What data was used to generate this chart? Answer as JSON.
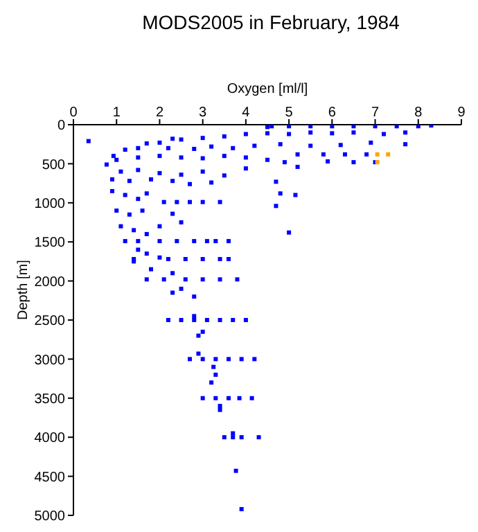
{
  "chart_data": {
    "type": "scatter",
    "title": "MODS2005 in February, 1984",
    "xlabel": "Oxygen [ml/l]",
    "ylabel": "Depth [m]",
    "xlim": [
      0,
      9
    ],
    "xticks": [
      0,
      1,
      2,
      3,
      4,
      5,
      6,
      7,
      8,
      9
    ],
    "ylim": [
      5000,
      0
    ],
    "yticks": [
      0,
      500,
      1000,
      1500,
      2000,
      2500,
      3000,
      3500,
      4000,
      4500,
      5000
    ],
    "marker": "square",
    "grid": false,
    "legend": false,
    "series": [
      {
        "color": "#0000ff",
        "x": [
          8.3,
          8.0,
          7.5,
          7.0,
          6.5,
          6.0,
          5.5,
          5.0,
          4.6,
          4.5,
          7.7,
          7.2,
          6.5,
          6.0,
          5.5,
          5.0,
          4.5,
          4.0,
          3.5,
          3.0,
          2.5,
          2.3,
          2.0,
          1.7,
          0.35,
          7.7,
          6.9,
          6.2,
          5.5,
          4.8,
          4.2,
          3.7,
          3.2,
          2.8,
          2.2,
          1.5,
          1.2,
          0.93,
          5.2,
          5.8,
          6.3,
          6.8,
          5.9,
          6.5,
          7.0,
          0.77,
          1.0,
          1.5,
          2.0,
          2.5,
          3.0,
          3.5,
          4.0,
          4.5,
          4.9,
          5.2,
          1.1,
          1.5,
          2.0,
          2.5,
          3.0,
          3.5,
          4.0,
          0.9,
          1.3,
          1.8,
          2.3,
          2.7,
          3.2,
          4.7,
          4.8,
          5.15,
          2.1,
          2.4,
          2.7,
          3.0,
          3.4,
          4.7,
          0.9,
          1.2,
          1.5,
          1.7,
          1.0,
          1.3,
          1.6,
          1.1,
          1.4,
          1.7,
          2.0,
          2.3,
          2.5,
          5.0,
          1.2,
          1.5,
          2.0,
          2.4,
          2.8,
          3.1,
          3.3,
          3.6,
          1.5,
          1.7,
          2.0,
          1.4,
          1.4,
          2.2,
          2.6,
          3.0,
          3.4,
          3.6,
          1.8,
          2.3,
          1.7,
          2.1,
          2.6,
          3.0,
          3.4,
          3.8,
          2.3,
          2.5,
          2.8,
          2.2,
          2.5,
          2.8,
          3.1,
          3.4,
          3.7,
          4.0,
          2.8,
          3.0,
          2.9,
          2.7,
          3.0,
          3.3,
          3.6,
          3.9,
          4.2,
          2.9,
          3.25,
          3.3,
          3.2,
          3.0,
          3.3,
          3.6,
          3.85,
          4.14,
          3.4,
          3.4,
          3.5,
          3.7,
          3.9,
          4.3,
          3.7,
          3.77,
          3.9
        ],
        "values": [
          10,
          20,
          20,
          20,
          20,
          20,
          20,
          20,
          20,
          30,
          100,
          120,
          100,
          110,
          100,
          120,
          110,
          120,
          150,
          170,
          190,
          180,
          230,
          240,
          210,
          250,
          230,
          260,
          270,
          250,
          270,
          300,
          280,
          310,
          300,
          300,
          320,
          400,
          380,
          380,
          380,
          380,
          470,
          480,
          480,
          510,
          450,
          420,
          400,
          420,
          430,
          400,
          420,
          450,
          480,
          540,
          600,
          580,
          620,
          640,
          600,
          650,
          560,
          700,
          720,
          700,
          720,
          760,
          740,
          730,
          880,
          900,
          990,
          990,
          990,
          990,
          990,
          1040,
          850,
          900,
          950,
          880,
          1100,
          1150,
          1100,
          1300,
          1350,
          1400,
          1300,
          1140,
          1250,
          1380,
          1490,
          1490,
          1490,
          1490,
          1490,
          1490,
          1490,
          1490,
          1600,
          1650,
          1700,
          1750,
          1720,
          1720,
          1720,
          1720,
          1720,
          1720,
          1850,
          1900,
          1980,
          1980,
          1980,
          1980,
          1980,
          1980,
          2150,
          2100,
          2200,
          2500,
          2500,
          2500,
          2500,
          2500,
          2500,
          2500,
          2450,
          2650,
          2700,
          3000,
          3000,
          3000,
          3000,
          3000,
          3000,
          2930,
          3100,
          3200,
          3300,
          3500,
          3500,
          3500,
          3500,
          3500,
          3600,
          3650,
          4000,
          4000,
          4000,
          4000,
          3950,
          4430,
          4920
        ]
      },
      {
        "color": "#ffa500",
        "x": [
          7.05,
          7.3,
          7.05
        ],
        "values": [
          380,
          380,
          480
        ]
      }
    ]
  }
}
